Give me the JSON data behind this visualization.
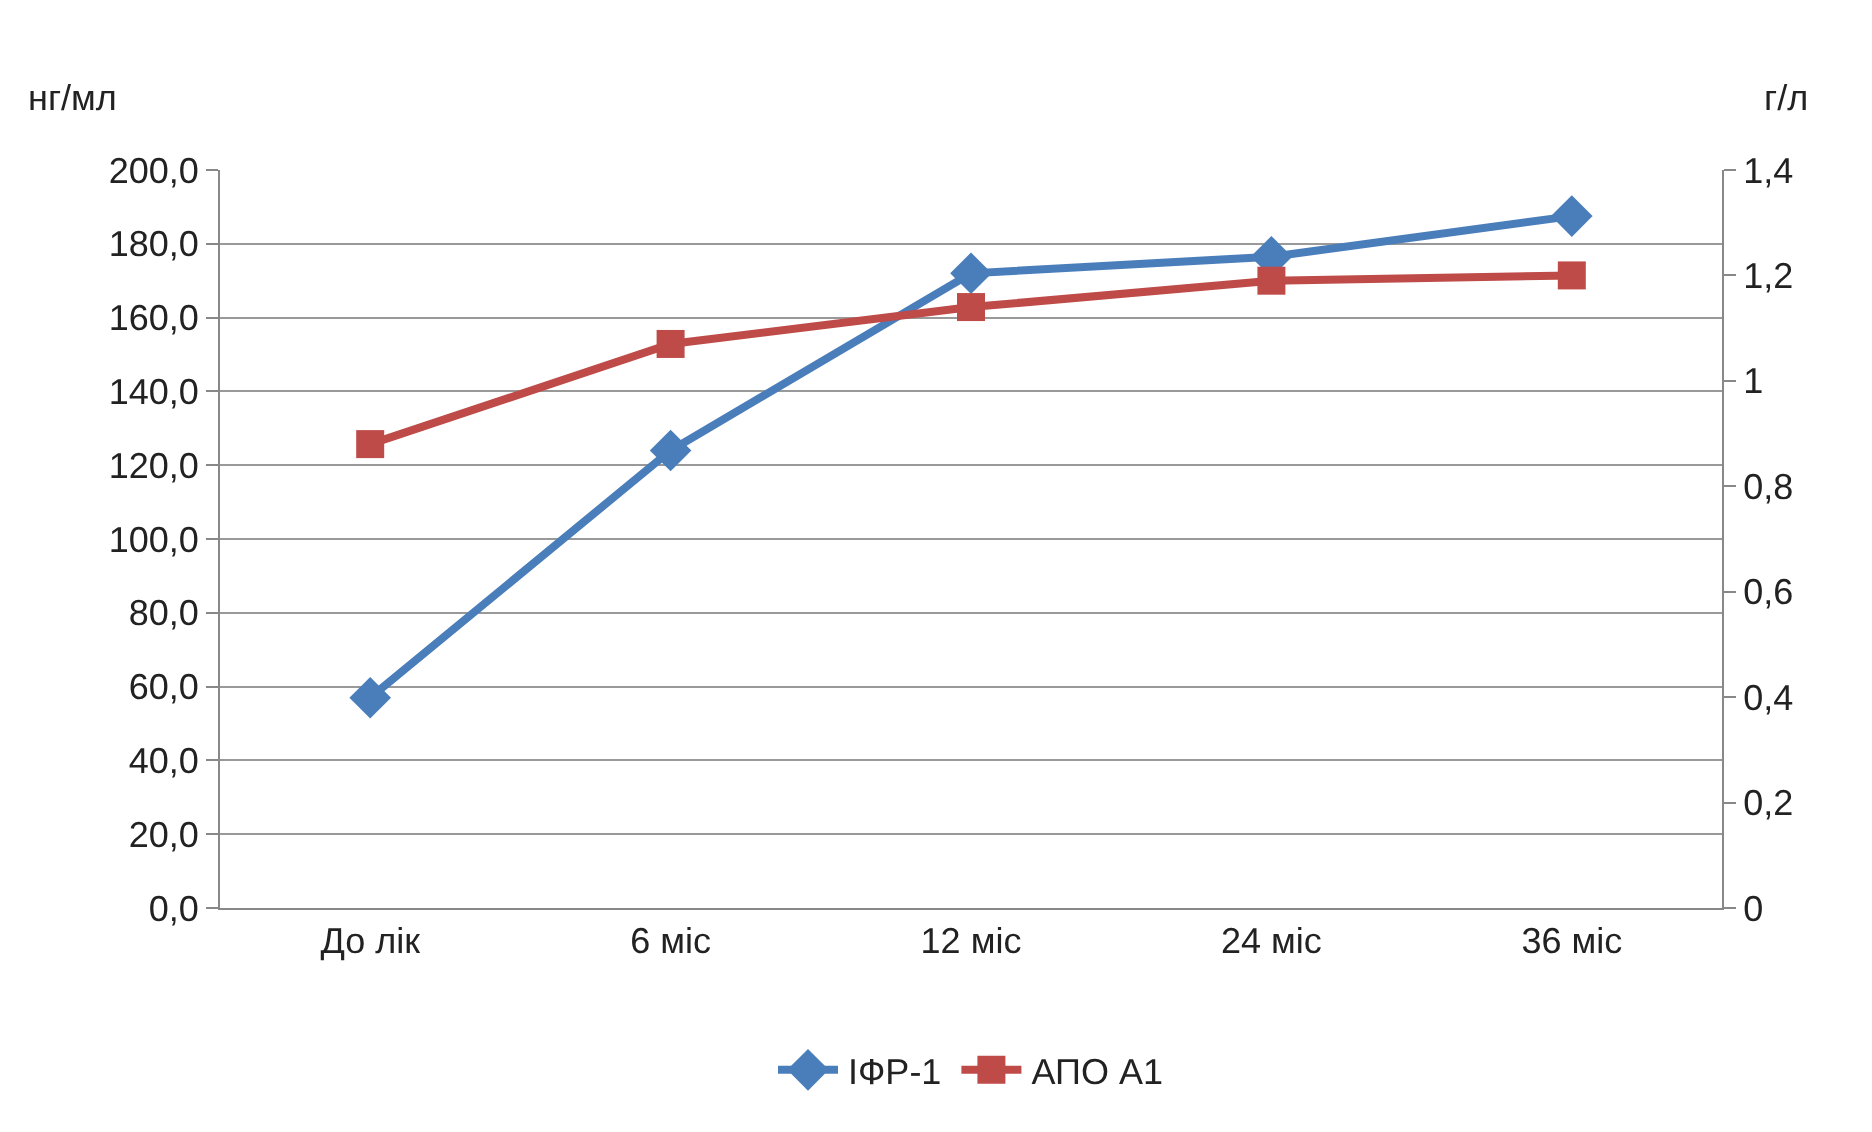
{
  "chart_data": {
    "type": "line",
    "categories": [
      "До лік",
      "6 міс",
      "12 міс",
      "24 міс",
      "36 міс"
    ],
    "series": [
      {
        "name": "ІФР-1",
        "color": "#4a7ebb",
        "values": [
          57,
          124,
          172,
          176.5,
          187.5
        ],
        "marker": "diamond"
      },
      {
        "name": "АПО А1",
        "color": "#be4b48",
        "values": [
          0.88,
          1.07,
          1.14,
          1.19,
          1.2
        ],
        "marker": "square",
        "axis": "y2"
      }
    ],
    "ylabel": "нг/мл",
    "y2label": "г/л",
    "ylim": [
      0,
      200
    ],
    "yticks": [
      {
        "value": 0,
        "label": "0,0"
      },
      {
        "value": 20,
        "label": "20,0"
      },
      {
        "value": 40,
        "label": "40,0"
      },
      {
        "value": 60,
        "label": "60,0"
      },
      {
        "value": 80,
        "label": "80,0"
      },
      {
        "value": 100,
        "label": "100,0"
      },
      {
        "value": 120,
        "label": "120,0"
      },
      {
        "value": 140,
        "label": "140,0"
      },
      {
        "value": 160,
        "label": "160,0"
      },
      {
        "value": 180,
        "label": "180,0"
      },
      {
        "value": 200,
        "label": "200,0"
      }
    ],
    "y2lim": [
      0,
      1.4
    ],
    "y2ticks": [
      0,
      {
        "value": 0.2,
        "label": "0,2"
      },
      {
        "value": 0.4,
        "label": "0,4"
      },
      {
        "value": 0.6,
        "label": "0,6"
      },
      {
        "value": 0.8,
        "label": "0,8"
      },
      1,
      {
        "value": 1.2,
        "label": "1,2"
      },
      {
        "value": 1.4,
        "label": "1,4"
      }
    ],
    "grid": "y",
    "legend": "bottom",
    "line_style": "solid"
  }
}
